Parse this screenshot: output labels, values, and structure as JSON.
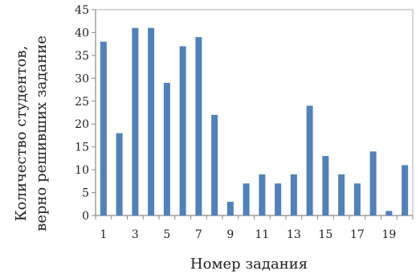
{
  "chart_data": {
    "type": "bar",
    "title": "",
    "xlabel": "Номер задания",
    "ylabel_line1": "Количество студентов,",
    "ylabel_line2": "верно решивших задание",
    "categories": [
      "1",
      "2",
      "3",
      "4",
      "5",
      "6",
      "7",
      "8",
      "9",
      "10",
      "11",
      "12",
      "13",
      "14",
      "15",
      "16",
      "17",
      "18",
      "19",
      "20"
    ],
    "x_tick_labels": [
      "1",
      "",
      "3",
      "",
      "5",
      "",
      "7",
      "",
      "9",
      "",
      "11",
      "",
      "13",
      "",
      "15",
      "",
      "17",
      "",
      "19",
      ""
    ],
    "values": [
      38,
      18,
      41,
      41,
      29,
      37,
      39,
      22,
      3,
      7,
      9,
      7,
      9,
      24,
      13,
      9,
      7,
      14,
      1,
      11
    ],
    "ylim": [
      0,
      45
    ],
    "y_ticks": [
      0,
      5,
      10,
      15,
      20,
      25,
      30,
      35,
      40,
      45
    ],
    "grid": false,
    "legend": "none",
    "bar_color": "#4f81bd"
  }
}
